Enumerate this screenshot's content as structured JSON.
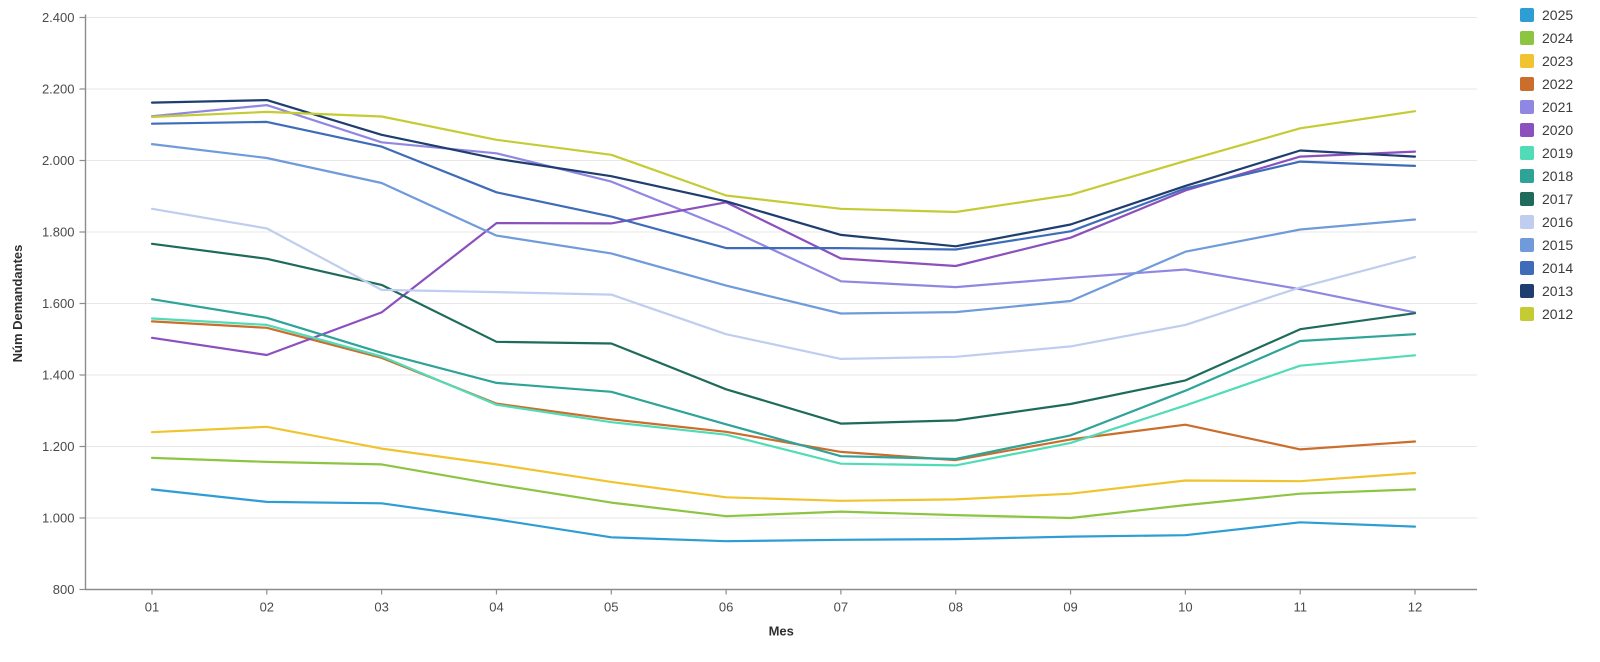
{
  "chart_data": {
    "type": "line",
    "title": "",
    "xlabel": "Mes",
    "ylabel": "Núm Demandantes",
    "x_categories": [
      "01",
      "02",
      "03",
      "04",
      "05",
      "06",
      "07",
      "08",
      "09",
      "10",
      "11",
      "12"
    ],
    "ylim": [
      800,
      2400
    ],
    "y_tick_values": [
      2400,
      2200,
      2000,
      1800,
      1600,
      1400,
      1200,
      1000,
      800
    ],
    "y_tick_labels": [
      "2.400",
      "2.200",
      "2.000",
      "1.800",
      "1.600",
      "1.400",
      "1.200",
      "1.000",
      "800"
    ],
    "grid": "horizontal",
    "legend_position": "right",
    "series": [
      {
        "name": "2025",
        "color": "#2D9DD4",
        "values": [
          1080,
          1045,
          1041,
          996,
          946,
          935,
          939,
          941,
          948,
          952,
          988,
          976
        ]
      },
      {
        "name": "2024",
        "color": "#8CC542",
        "values": [
          1168,
          1157,
          1150,
          1094,
          1043,
          1005,
          1018,
          1008,
          1000,
          1036,
          1068,
          1080
        ]
      },
      {
        "name": "2023",
        "color": "#F0C430",
        "values": [
          1240,
          1255,
          1194,
          1150,
          1101,
          1058,
          1048,
          1052,
          1068,
          1105,
          1103,
          1126
        ]
      },
      {
        "name": "2022",
        "color": "#CB6D2B",
        "values": [
          1550,
          1532,
          1448,
          1320,
          1276,
          1241,
          1185,
          1162,
          1220,
          1261,
          1192,
          1214
        ]
      },
      {
        "name": "2021",
        "color": "#9087E2",
        "values": [
          2124,
          2155,
          2051,
          2020,
          1941,
          1811,
          1662,
          1646,
          1672,
          1695,
          1640,
          1575
        ]
      },
      {
        "name": "2020",
        "color": "#8B50BE",
        "values": [
          1504,
          1456,
          1575,
          1825,
          1824,
          1883,
          1726,
          1705,
          1784,
          1916,
          2011,
          2025
        ]
      },
      {
        "name": "2019",
        "color": "#50DCB6",
        "values": [
          1558,
          1540,
          1452,
          1317,
          1268,
          1233,
          1152,
          1147,
          1210,
          1315,
          1426,
          1455
        ]
      },
      {
        "name": "2018",
        "color": "#2EA397",
        "values": [
          1612,
          1560,
          1462,
          1378,
          1353,
          1262,
          1173,
          1165,
          1231,
          1356,
          1495,
          1514
        ]
      },
      {
        "name": "2017",
        "color": "#1E6B5B",
        "values": [
          1767,
          1725,
          1652,
          1493,
          1488,
          1360,
          1264,
          1273,
          1319,
          1385,
          1528,
          1573
        ]
      },
      {
        "name": "2016",
        "color": "#BFCDEE",
        "values": [
          1865,
          1810,
          1638,
          1632,
          1625,
          1514,
          1445,
          1451,
          1480,
          1540,
          1645,
          1730
        ]
      },
      {
        "name": "2015",
        "color": "#6F9BDB",
        "values": [
          2046,
          2007,
          1937,
          1790,
          1740,
          1650,
          1572,
          1576,
          1607,
          1745,
          1807,
          1835
        ]
      },
      {
        "name": "2014",
        "color": "#3E6CB8",
        "values": [
          2103,
          2108,
          2039,
          1911,
          1843,
          1755,
          1755,
          1751,
          1802,
          1922,
          1997,
          1985
        ]
      },
      {
        "name": "2013",
        "color": "#1F3E70",
        "values": [
          2162,
          2169,
          2072,
          2005,
          1956,
          1886,
          1792,
          1760,
          1821,
          1929,
          2028,
          2011
        ]
      },
      {
        "name": "2012",
        "color": "#C5CC33",
        "values": [
          2122,
          2136,
          2123,
          2058,
          2016,
          1902,
          1865,
          1856,
          1904,
          1999,
          2090,
          2138
        ]
      }
    ]
  },
  "layout_colors": {
    "grid": "#e7e7e7",
    "axis": "#8c8c8c",
    "background": "#ffffff"
  }
}
